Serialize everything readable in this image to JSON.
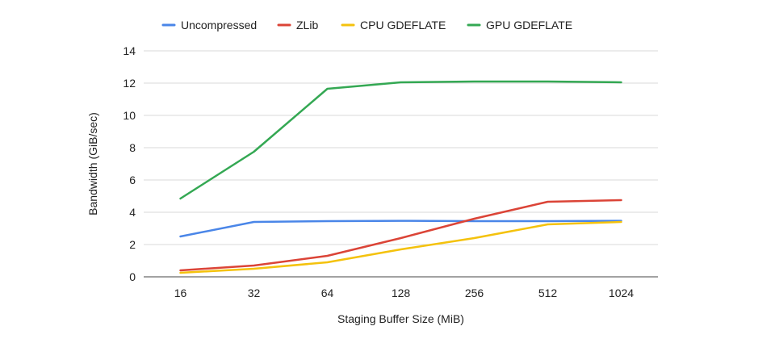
{
  "chart_data": {
    "type": "line",
    "title": "",
    "xlabel": "Staging Buffer Size (MiB)",
    "ylabel": "Bandwidth (GiB/sec)",
    "categories": [
      "16",
      "32",
      "64",
      "128",
      "256",
      "512",
      "1024"
    ],
    "ylim": [
      0,
      14
    ],
    "yticks": [
      0,
      2,
      4,
      6,
      8,
      10,
      12,
      14
    ],
    "grid": true,
    "legend_position": "top",
    "series": [
      {
        "name": "Uncompressed",
        "color": "#4a86e8",
        "values": [
          2.5,
          3.4,
          3.45,
          3.47,
          3.45,
          3.45,
          3.47
        ]
      },
      {
        "name": "ZLib",
        "color": "#db4437",
        "values": [
          0.4,
          0.7,
          1.3,
          2.4,
          3.6,
          4.65,
          4.75
        ]
      },
      {
        "name": "CPU GDEFLATE",
        "color": "#f4c20d",
        "values": [
          0.25,
          0.5,
          0.9,
          1.7,
          2.4,
          3.25,
          3.4
        ]
      },
      {
        "name": "GPU GDEFLATE",
        "color": "#34a853",
        "values": [
          4.85,
          7.75,
          11.65,
          12.05,
          12.1,
          12.1,
          12.05
        ]
      }
    ]
  }
}
